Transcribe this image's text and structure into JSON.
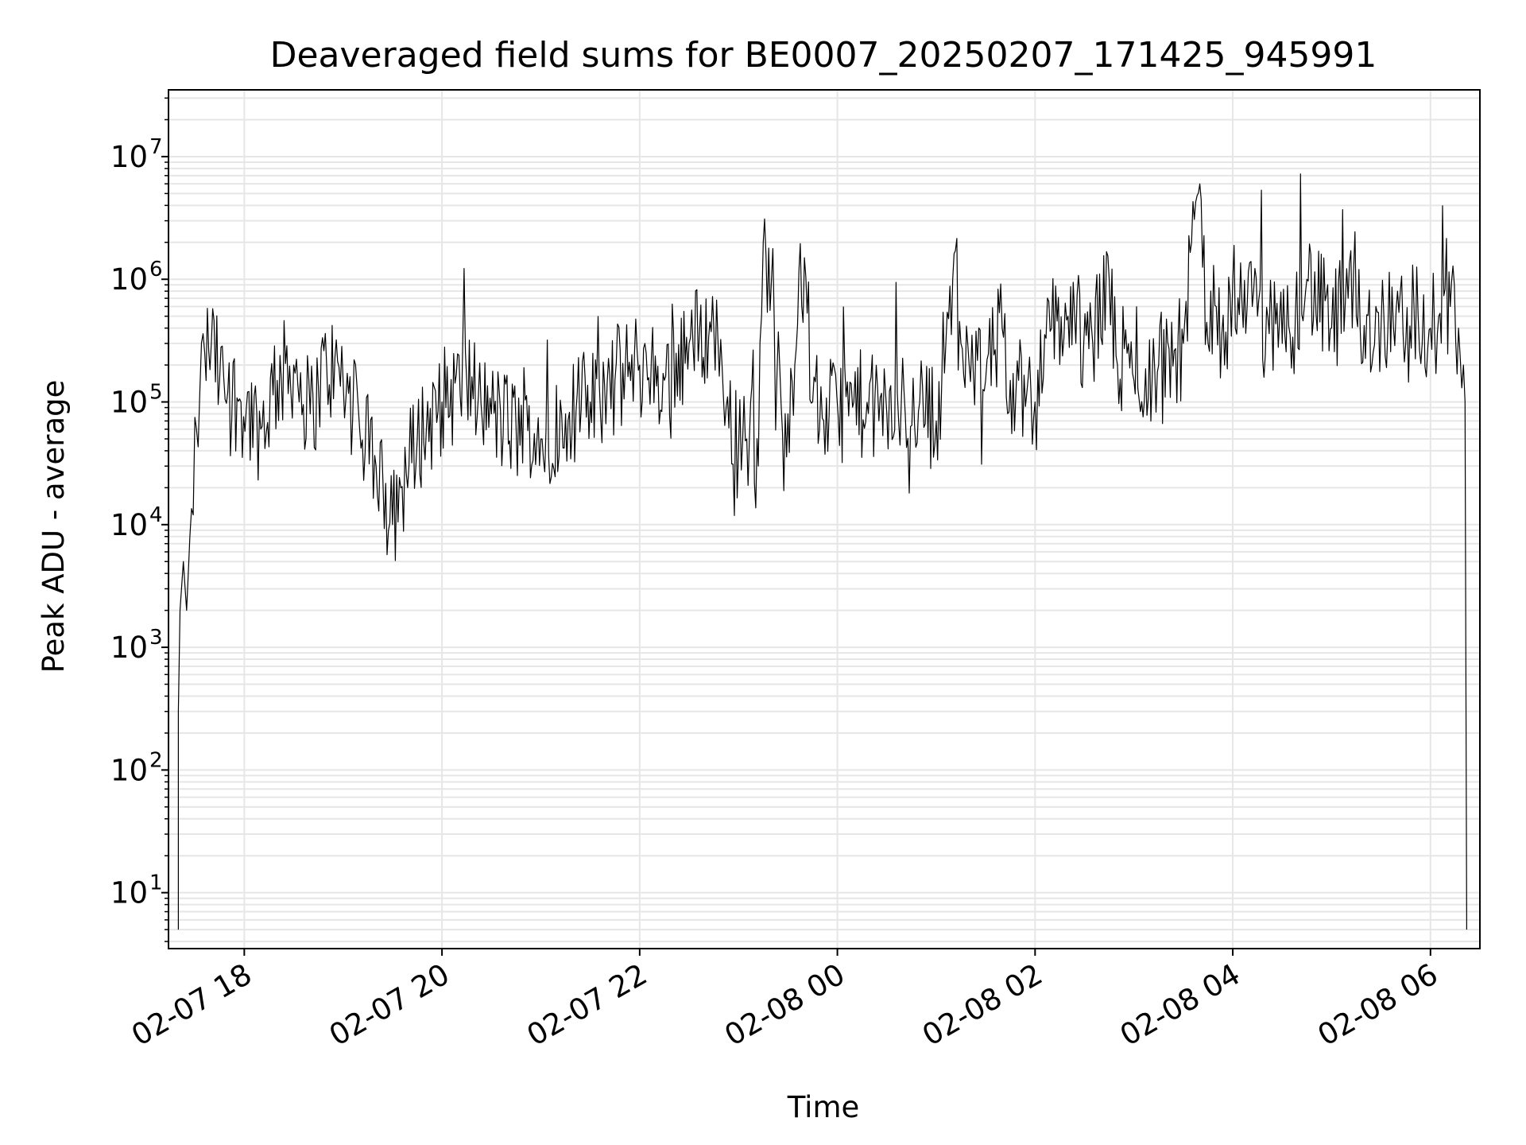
{
  "chart_data": {
    "type": "line",
    "title": "Deaveraged field sums for BE0007_20250207_171425_945991",
    "xlabel": "Time",
    "ylabel": "Peak ADU - average",
    "yscale": "log",
    "ylim": [
      3.5,
      35000000
    ],
    "xlim": [
      "02-07 17:14",
      "02-08 06:30"
    ],
    "grid": true,
    "line_color": "#000000",
    "grid_color": "#e6e6e6",
    "x_ticks": [
      {
        "value": "02-07 18:00",
        "label": "02-07 18"
      },
      {
        "value": "02-07 20:00",
        "label": "02-07 20"
      },
      {
        "value": "02-07 22:00",
        "label": "02-07 22"
      },
      {
        "value": "02-08 00:00",
        "label": "02-08 00"
      },
      {
        "value": "02-08 02:00",
        "label": "02-08 02"
      },
      {
        "value": "02-08 04:00",
        "label": "02-08 04"
      },
      {
        "value": "02-08 06:00",
        "label": "02-08 06"
      }
    ],
    "y_ticks": [
      {
        "value": 10,
        "base": "10",
        "exp": "1"
      },
      {
        "value": 100,
        "base": "10",
        "exp": "2"
      },
      {
        "value": 1000,
        "base": "10",
        "exp": "3"
      },
      {
        "value": 10000,
        "base": "10",
        "exp": "4"
      },
      {
        "value": 100000,
        "base": "10",
        "exp": "5"
      },
      {
        "value": 1000000,
        "base": "10",
        "exp": "6"
      },
      {
        "value": 10000000,
        "base": "10",
        "exp": "7"
      }
    ],
    "series": [
      {
        "x": [
          "02-07 17:20",
          "02-07 17:20",
          "02-07 17:21",
          "02-07 17:23",
          "02-07 17:25",
          "02-07 17:27",
          "02-07 17:29",
          "02-07 17:31",
          "02-07 17:33",
          "02-07 17:36",
          "02-07 17:40",
          "02-07 17:45",
          "02-07 17:50",
          "02-07 17:58",
          "02-07 18:10",
          "02-07 18:20",
          "02-07 18:30",
          "02-07 18:40",
          "02-07 18:50",
          "02-07 19:00",
          "02-07 19:10",
          "02-07 19:20",
          "02-07 19:30",
          "02-07 19:35",
          "02-07 19:45",
          "02-07 20:00",
          "02-07 20:15",
          "02-07 20:30",
          "02-07 20:45",
          "02-07 21:00",
          "02-07 21:15",
          "02-07 21:30",
          "02-07 21:45",
          "02-07 22:00",
          "02-07 22:15",
          "02-07 22:30",
          "02-07 22:45",
          "02-07 22:50",
          "02-07 23:00",
          "02-07 23:05",
          "02-07 23:12",
          "02-07 23:15",
          "02-07 23:20",
          "02-07 23:25",
          "02-07 23:30",
          "02-07 23:40",
          "02-07 23:45",
          "02-07 23:55",
          "02-08 00:10",
          "02-08 00:30",
          "02-08 00:50",
          "02-08 01:00",
          "02-08 01:10",
          "02-08 01:15",
          "02-08 01:20",
          "02-08 01:30",
          "02-08 01:40",
          "02-08 01:45",
          "02-08 01:50",
          "02-08 02:00",
          "02-08 02:10",
          "02-08 02:20",
          "02-08 02:35",
          "02-08 02:45",
          "02-08 02:50",
          "02-08 03:00",
          "02-08 03:15",
          "02-08 03:30",
          "02-08 03:40",
          "02-08 03:45",
          "02-08 03:50",
          "02-08 03:55",
          "02-08 04:00",
          "02-08 04:15",
          "02-08 04:30",
          "02-08 04:38",
          "02-08 04:45",
          "02-08 05:00",
          "02-08 05:10",
          "02-08 05:15",
          "02-08 05:30",
          "02-08 05:40",
          "02-08 05:45",
          "02-08 05:50",
          "02-08 05:55",
          "02-08 06:00",
          "02-08 06:05",
          "02-08 06:12",
          "02-08 06:17",
          "02-08 06:20",
          "02-08 06:21",
          "02-08 06:22"
        ],
        "y": [
          5,
          300,
          2000,
          5000,
          2000,
          8000,
          12000,
          60000,
          120000,
          250000,
          300000,
          150000,
          120000,
          100000,
          60000,
          150000,
          200000,
          80000,
          200000,
          150000,
          60000,
          30000,
          10000,
          20000,
          50000,
          100000,
          150000,
          80000,
          60000,
          50000,
          80000,
          100000,
          150000,
          200000,
          150000,
          300000,
          400000,
          200000,
          40000,
          50000,
          30000,
          2000000,
          1000000,
          200000,
          80000,
          1500000,
          100000,
          80000,
          100000,
          80000,
          100000,
          70000,
          1000000,
          300000,
          200000,
          150000,
          400000,
          150000,
          150000,
          100000,
          400000,
          500000,
          300000,
          1000000,
          200000,
          150000,
          200000,
          300000,
          6000000,
          300000,
          600000,
          200000,
          1000000,
          500000,
          300000,
          500000,
          1000000,
          400000,
          700000,
          500000,
          400000,
          800000,
          300000,
          600000,
          300000,
          400000,
          500000,
          600000,
          400000,
          200000,
          100000,
          5
        ]
      }
    ]
  }
}
